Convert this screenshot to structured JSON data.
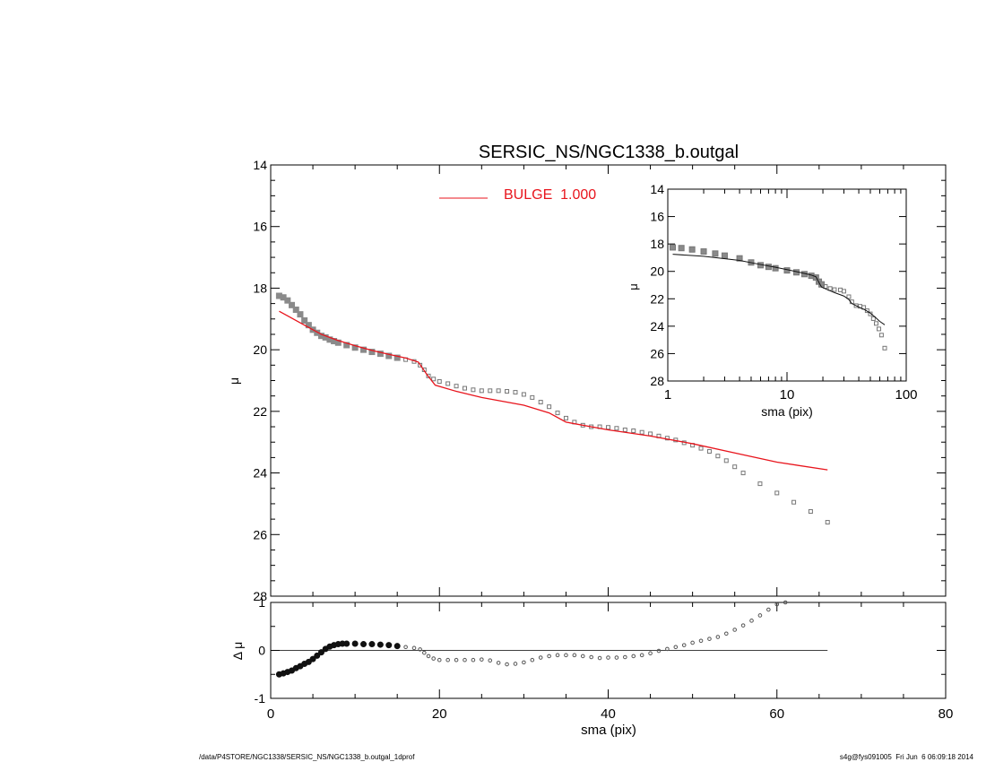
{
  "chart_data": [
    {
      "type": "scatter",
      "title": "SERSIC_NS/NGC1338_b.outgal",
      "xlabel": "",
      "ylabel": "μ",
      "xlim": [
        0,
        80
      ],
      "ylim": [
        28,
        14
      ],
      "y_inverted": true,
      "xticks": [
        0,
        20,
        40,
        60,
        80
      ],
      "yticks": [
        14,
        16,
        18,
        20,
        22,
        24,
        26,
        28
      ],
      "legend": {
        "label": "BULGE  1.000",
        "color": "#e8141c",
        "placement": "top-center"
      },
      "series": [
        {
          "marker": "square",
          "color": "#888888",
          "x": [
            1.0,
            1.5,
            2.0,
            2.5,
            3.0,
            3.5,
            4.0,
            4.5,
            5.0,
            5.5,
            6.0,
            6.5,
            7.0,
            7.5,
            8.0,
            9.0,
            10.0,
            11.0,
            12.0,
            13.0,
            14.0,
            15.0,
            16.0,
            17.0,
            17.7,
            18.2,
            18.7,
            19.3,
            20.0,
            21.0,
            22.0,
            23.0,
            24.0,
            25.0,
            26.0,
            27.0,
            28.0,
            29.0,
            30.0,
            31.0,
            32.0,
            33.0,
            34.0,
            35.0,
            36.0,
            37.0,
            38.0,
            39.0,
            40.0,
            41.0,
            42.0,
            43.0,
            44.0,
            45.0,
            46.0,
            47.0,
            48.0,
            49.0,
            50.0,
            51.0,
            52.0,
            53.0,
            54.0,
            55.0,
            56.0,
            58.0,
            60.0,
            62.0,
            64.0,
            66.0
          ],
          "y": [
            18.25,
            18.3,
            18.4,
            18.55,
            18.7,
            18.85,
            19.05,
            19.2,
            19.35,
            19.45,
            19.55,
            19.6,
            19.67,
            19.72,
            19.77,
            19.85,
            19.93,
            20.0,
            20.07,
            20.13,
            20.2,
            20.26,
            20.32,
            20.38,
            20.5,
            20.65,
            20.85,
            20.95,
            21.03,
            21.1,
            21.18,
            21.25,
            21.3,
            21.33,
            21.33,
            21.33,
            21.35,
            21.38,
            21.45,
            21.55,
            21.7,
            21.85,
            22.05,
            22.22,
            22.35,
            22.45,
            22.5,
            22.5,
            22.52,
            22.55,
            22.6,
            22.63,
            22.68,
            22.73,
            22.8,
            22.87,
            22.93,
            23.02,
            23.1,
            23.2,
            23.3,
            23.45,
            23.6,
            23.8,
            24.0,
            24.35,
            24.65,
            24.95,
            25.25,
            25.6
          ]
        },
        {
          "name": "BULGE  1.000",
          "marker": "line",
          "color": "#e8141c",
          "x": [
            1,
            2,
            4,
            6,
            8,
            10,
            12,
            14,
            16,
            17.5,
            18.5,
            19.5,
            22,
            25,
            30,
            33,
            35,
            40,
            45,
            50,
            55,
            60,
            66
          ],
          "y": [
            18.75,
            18.9,
            19.2,
            19.5,
            19.7,
            19.87,
            20.02,
            20.15,
            20.27,
            20.4,
            20.8,
            21.15,
            21.35,
            21.55,
            21.8,
            22.05,
            22.35,
            22.6,
            22.8,
            23.05,
            23.35,
            23.65,
            23.9
          ]
        }
      ]
    },
    {
      "type": "scatter",
      "title": "",
      "xlabel": "sma (pix)",
      "ylabel": "Δ μ",
      "xlim": [
        0,
        80
      ],
      "ylim": [
        -1,
        1
      ],
      "xticks": [
        0,
        20,
        40,
        60,
        80
      ],
      "yticks": [
        -1,
        0,
        1
      ],
      "reference_line": 0,
      "series": [
        {
          "marker": "circle",
          "color": "#111111",
          "x": [
            1.0,
            1.5,
            2.0,
            2.5,
            3.0,
            3.5,
            4.0,
            4.5,
            5.0,
            5.5,
            6.0,
            6.5,
            7.0,
            7.5,
            8.0,
            8.5,
            9.0,
            10.0,
            11.0,
            12.0,
            13.0,
            14.0,
            15.0,
            16.0,
            17.0,
            17.7,
            18.2,
            18.7,
            19.3,
            20.0,
            21.0,
            22.0,
            23.0,
            24.0,
            25.0,
            26.0,
            27.0,
            28.0,
            29.0,
            30.0,
            31.0,
            32.0,
            33.0,
            34.0,
            35.0,
            36.0,
            37.0,
            38.0,
            39.0,
            40.0,
            41.0,
            42.0,
            43.0,
            44.0,
            45.0,
            46.0,
            47.0,
            48.0,
            49.0,
            50.0,
            51.0,
            52.0,
            53.0,
            54.0,
            55.0,
            56.0,
            57.0,
            58.0,
            59.0,
            60.0,
            61.0
          ],
          "y": [
            -0.5,
            -0.48,
            -0.45,
            -0.42,
            -0.37,
            -0.33,
            -0.28,
            -0.24,
            -0.18,
            -0.11,
            -0.04,
            0.03,
            0.08,
            0.11,
            0.13,
            0.14,
            0.14,
            0.14,
            0.13,
            0.13,
            0.12,
            0.11,
            0.09,
            0.07,
            0.05,
            0.02,
            -0.05,
            -0.12,
            -0.17,
            -0.2,
            -0.2,
            -0.2,
            -0.2,
            -0.2,
            -0.19,
            -0.21,
            -0.26,
            -0.29,
            -0.28,
            -0.25,
            -0.2,
            -0.15,
            -0.12,
            -0.1,
            -0.1,
            -0.1,
            -0.12,
            -0.14,
            -0.16,
            -0.15,
            -0.15,
            -0.14,
            -0.12,
            -0.1,
            -0.06,
            -0.01,
            0.03,
            0.07,
            0.11,
            0.16,
            0.2,
            0.24,
            0.28,
            0.35,
            0.43,
            0.52,
            0.62,
            0.73,
            0.85,
            0.96,
            1.0
          ]
        }
      ]
    },
    {
      "type": "scatter",
      "title": "",
      "xlabel": "sma (pix)",
      "ylabel": "μ",
      "x_scale": "log",
      "xlim": [
        1,
        100
      ],
      "ylim": [
        28,
        14
      ],
      "y_inverted": true,
      "xticks": [
        1,
        10,
        100
      ],
      "yticks": [
        14,
        16,
        18,
        20,
        22,
        24,
        26,
        28
      ],
      "series": [
        {
          "marker": "square",
          "color": "#888888",
          "x": [
            1.1,
            1.3,
            1.6,
            2.0,
            2.5,
            3.0,
            4.0,
            5.0,
            6.0,
            7.0,
            8.0,
            10.0,
            12.0,
            14.0,
            16.0,
            17.5,
            18.5,
            19.5,
            21.0,
            23.0,
            25.0,
            28.0,
            30.0,
            33.0,
            35.0,
            38.0,
            41.0,
            44.0,
            47.0,
            50.0,
            53.0,
            56.0,
            59.0,
            62.0,
            66.0
          ],
          "y": [
            18.25,
            18.3,
            18.4,
            18.55,
            18.7,
            18.85,
            19.05,
            19.35,
            19.55,
            19.67,
            19.77,
            19.93,
            20.07,
            20.2,
            20.32,
            20.45,
            20.75,
            20.95,
            21.1,
            21.25,
            21.33,
            21.35,
            21.45,
            21.85,
            22.22,
            22.5,
            22.55,
            22.63,
            22.87,
            23.1,
            23.45,
            23.8,
            24.2,
            24.65,
            25.6
          ]
        },
        {
          "marker": "line",
          "color": "#111111",
          "x": [
            1.1,
            2,
            4,
            6,
            8,
            10,
            12,
            14,
            16,
            17.5,
            18.5,
            19.5,
            22,
            25,
            30,
            33,
            35,
            40,
            45,
            50,
            55,
            60,
            66
          ],
          "y": [
            18.75,
            18.9,
            19.2,
            19.5,
            19.7,
            19.87,
            20.02,
            20.15,
            20.27,
            20.4,
            20.8,
            21.15,
            21.35,
            21.55,
            21.8,
            22.05,
            22.35,
            22.6,
            22.8,
            23.05,
            23.35,
            23.65,
            23.9
          ]
        }
      ]
    }
  ],
  "footer": {
    "left": "/data/P4STORE/NGC1338/SERSIC_NS/NGC1338_b.outgal_1dprof",
    "right": "s4g@fys091005  Fri Jun  6 06:09:18 2014"
  }
}
